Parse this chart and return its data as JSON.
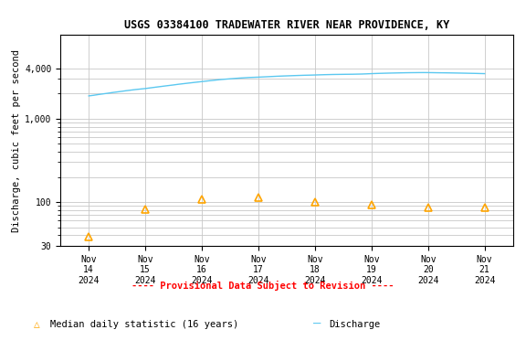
{
  "title": "USGS 03384100 TRADEWATER RIVER NEAR PROVIDENCE, KY",
  "ylabel": "Discharge, cubic feet per second",
  "background_color": "#ffffff",
  "plot_bg_color": "#ffffff",
  "grid_color": "#c8c8c8",
  "title_fontsize": 8.5,
  "tick_dates": [
    "Nov\n14\n2024",
    "Nov\n15\n2024",
    "Nov\n16\n2024",
    "Nov\n17\n2024",
    "Nov\n18\n2024",
    "Nov\n19\n2024",
    "Nov\n20\n2024",
    "Nov\n21\n2024"
  ],
  "discharge_x": [
    0.0,
    0.083,
    0.167,
    0.25,
    0.333,
    0.417,
    0.5,
    0.583,
    0.667,
    0.75,
    0.833,
    0.917,
    1.0,
    1.083,
    1.167,
    1.25,
    1.333,
    1.417,
    1.5,
    1.583,
    1.667,
    1.75,
    1.833,
    1.917,
    2.0,
    2.083,
    2.167,
    2.25,
    2.333,
    2.417,
    2.5,
    2.583,
    2.667,
    2.75,
    2.833,
    2.917,
    3.0,
    3.083,
    3.167,
    3.25,
    3.333,
    3.417,
    3.5,
    3.583,
    3.667,
    3.75,
    3.833,
    3.917,
    4.0,
    4.083,
    4.167,
    4.25,
    4.333,
    4.417,
    4.5,
    4.583,
    4.667,
    4.75,
    4.833,
    4.917,
    5.0,
    5.083,
    5.167,
    5.25,
    5.333,
    5.417,
    5.5,
    5.583,
    5.667,
    5.75,
    5.833,
    5.917,
    6.0,
    6.083,
    6.167,
    6.25,
    6.333,
    6.417,
    6.5,
    6.583,
    6.667,
    6.75,
    6.833,
    6.917,
    7.0
  ],
  "discharge_y": [
    1870,
    1900,
    1940,
    1975,
    2010,
    2050,
    2085,
    2120,
    2160,
    2195,
    2230,
    2260,
    2290,
    2330,
    2370,
    2410,
    2450,
    2490,
    2530,
    2575,
    2615,
    2655,
    2695,
    2735,
    2775,
    2815,
    2855,
    2895,
    2935,
    2965,
    2995,
    3025,
    3055,
    3080,
    3105,
    3120,
    3135,
    3155,
    3175,
    3195,
    3215,
    3232,
    3248,
    3263,
    3278,
    3292,
    3305,
    3315,
    3328,
    3342,
    3356,
    3366,
    3376,
    3382,
    3388,
    3393,
    3398,
    3408,
    3418,
    3435,
    3455,
    3470,
    3485,
    3497,
    3508,
    3518,
    3528,
    3538,
    3545,
    3550,
    3555,
    3558,
    3555,
    3548,
    3540,
    3535,
    3530,
    3522,
    3514,
    3505,
    3496,
    3486,
    3477,
    3465,
    3455
  ],
  "discharge_color": "#5bc8f0",
  "median_x": [
    0,
    1,
    2,
    3,
    4,
    5,
    6,
    7
  ],
  "median_y": [
    38,
    82,
    108,
    113,
    101,
    92,
    87,
    85
  ],
  "median_color": "#ffa500",
  "ylim": [
    30,
    10000
  ],
  "yticks": [
    30,
    100,
    1000,
    4000
  ],
  "ytick_minor": [
    40,
    50,
    60,
    70,
    80,
    90,
    200,
    300,
    400,
    500,
    600,
    700,
    800,
    900,
    2000,
    3000
  ],
  "provisional_text": "---- Provisional Data Subject to Revision ----",
  "provisional_color": "#ff0000",
  "legend_median_label": "Median daily statistic (16 years)",
  "legend_discharge_label": "Discharge",
  "font_family": "monospace",
  "tick_fontsize": 7,
  "ylabel_fontsize": 7.5,
  "legend_fontsize": 7.5
}
